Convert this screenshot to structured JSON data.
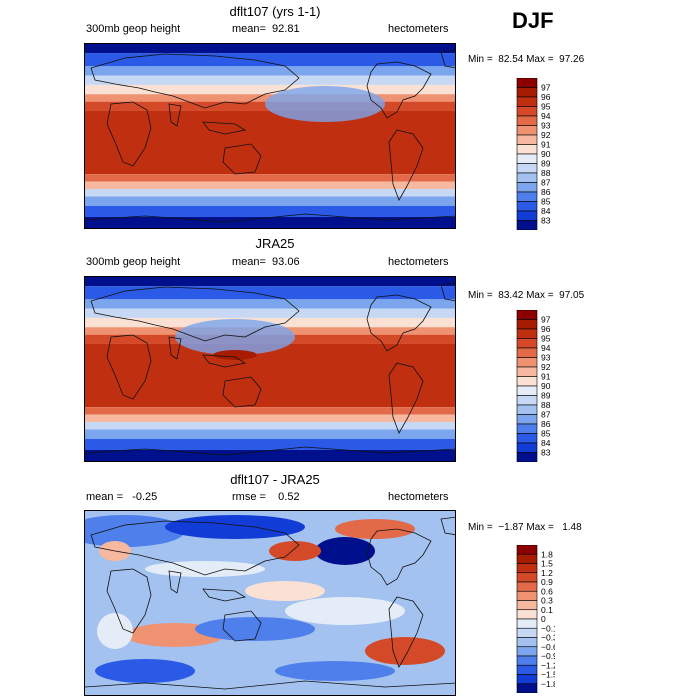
{
  "season": "DJF",
  "panels": [
    {
      "title": "dflt107 (yrs 1-1)",
      "left_label": "300mb geop height",
      "mean_label": "mean=  92.81",
      "units": "hectometers",
      "minmax": "Min =  82.54 Max =  97.26",
      "colorbar_labels": [
        "97",
        "96",
        "95",
        "94",
        "93",
        "92",
        "91",
        "90",
        "89",
        "88",
        "87",
        "86",
        "85",
        "84",
        "83"
      ],
      "colorbar_colors": [
        "#8b0000",
        "#a51c00",
        "#c03010",
        "#d44a28",
        "#e26a48",
        "#ef9272",
        "#f7b8a0",
        "#fbe1d3",
        "#e4ecf8",
        "#c7d8f4",
        "#a4c2f0",
        "#7ba5ec",
        "#4f7fea",
        "#2a5ae6",
        "#123cd6",
        "#000f8c"
      ]
    },
    {
      "title": "JRA25",
      "left_label": "300mb geop height",
      "mean_label": "mean=  93.06",
      "units": "hectometers",
      "minmax": "Min =  83.42 Max =  97.05",
      "colorbar_labels": [
        "97",
        "96",
        "95",
        "94",
        "93",
        "92",
        "91",
        "90",
        "89",
        "88",
        "87",
        "86",
        "85",
        "84",
        "83"
      ],
      "colorbar_colors": [
        "#8b0000",
        "#a51c00",
        "#c03010",
        "#d44a28",
        "#e26a48",
        "#ef9272",
        "#f7b8a0",
        "#fbe1d3",
        "#e4ecf8",
        "#c7d8f4",
        "#a4c2f0",
        "#7ba5ec",
        "#4f7fea",
        "#2a5ae6",
        "#123cd6",
        "#000f8c"
      ]
    },
    {
      "title": "dflt107 - JRA25",
      "left_label": "mean =   -0.25",
      "mean_label": "rmse =    0.52",
      "units": "hectometers",
      "minmax": "Min =  −1.87 Max =   1.48",
      "colorbar_labels": [
        "1.8",
        "1.5",
        "1.2",
        "0.9",
        "0.6",
        "0.3",
        "0.1",
        "0",
        "−0.1",
        "−0.3",
        "−0.6",
        "−0.9",
        "−1.2",
        "−1.5",
        "−1.8"
      ],
      "colorbar_colors": [
        "#8b0000",
        "#a51c00",
        "#c03010",
        "#d44a28",
        "#e26a48",
        "#ef9272",
        "#f7b8a0",
        "#fbe1d3",
        "#e4ecf8",
        "#c7d8f4",
        "#a4c2f0",
        "#7ba5ec",
        "#4f7fea",
        "#2a5ae6",
        "#123cd6",
        "#000f8c"
      ]
    }
  ]
}
